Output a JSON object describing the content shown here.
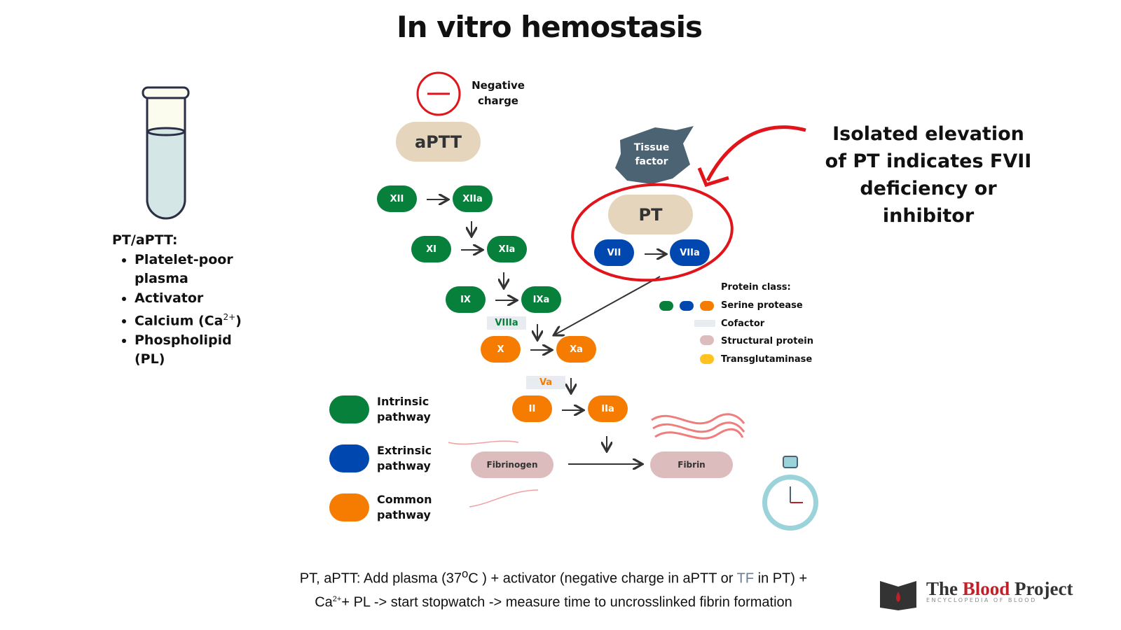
{
  "title": "In vitro hemostasis",
  "tube_list": {
    "heading": "PT/aPTT:",
    "items": [
      "Platelet-poor plasma",
      "Activator",
      "Calcium (Ca2+)",
      "Phospholipid (PL)"
    ],
    "ca_base": "Calcium (Ca",
    "ca_sup": "2+",
    "ca_end": ")"
  },
  "negative_charge": "Negative charge",
  "aptt": "aPTT",
  "pt": "PT",
  "tissue_factor": "Tissue factor",
  "factors": {
    "XII": "XII",
    "XIIa": "XIIa",
    "XI": "XI",
    "XIa": "XIa",
    "IX": "IX",
    "IXa": "IXa",
    "VIIIa": "VIIIa",
    "X": "X",
    "Xa": "Xa",
    "Va": "Va",
    "II": "II",
    "IIa": "IIa",
    "VII": "VII",
    "VIIa": "VIIa",
    "fibrinogen": "Fibrinogen",
    "fibrin": "Fibrin"
  },
  "annotation": "Isolated elevation of PT indicates FVII deficiency or inhibitor",
  "pathway_legend": [
    {
      "label": "Intrinsic pathway",
      "color": "#06803a"
    },
    {
      "label": "Extrinsic pathway",
      "color": "#0048b0"
    },
    {
      "label": "Common pathway",
      "color": "#f57c00"
    }
  ],
  "protein_class": {
    "heading": "Protein class:",
    "items": [
      {
        "label": "Serine protease",
        "colors": [
          "#06803a",
          "#0048b0",
          "#f57c00"
        ]
      },
      {
        "label": "Cofactor",
        "colors": [
          "#e8ecf1"
        ]
      },
      {
        "label": "Structural protein",
        "colors": [
          "#dcbcbc"
        ]
      },
      {
        "label": "Transglutaminase",
        "colors": [
          "#ffc21f"
        ]
      }
    ]
  },
  "bottom_text": {
    "l1a": "PT, aPTT: Add plasma (37",
    "l1sup": "o",
    "l1b": "C ) + activator (negative charge in aPTT or ",
    "tf": "TF",
    "l1c": " in PT) +",
    "l2a": "Ca",
    "l2sup": "2+",
    "l2b": "+ PL -> start stopwatch -> measure time to uncrosslinked fibrin formation"
  },
  "logo": {
    "name_a": "The ",
    "name_b": "Blood",
    "name_c": " Project",
    "tagline": "ENCYCLOPEDIA OF BLOOD"
  }
}
